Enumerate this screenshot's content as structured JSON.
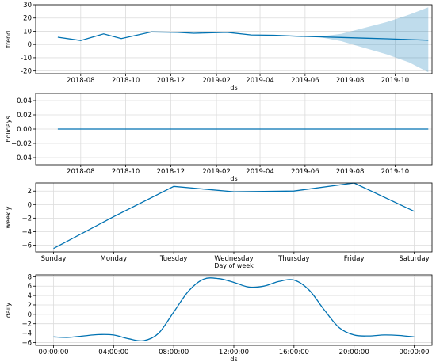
{
  "colors": {
    "line": "#0072B2",
    "band": "#0072B2",
    "grid": "#dcdcdc",
    "frame": "#000000"
  },
  "chart_data": [
    {
      "type": "line",
      "name": "trend",
      "xlabel": "ds",
      "ylabel": "trend",
      "x_type": "date",
      "xlim": [
        "2018-06-01",
        "2019-11-20"
      ],
      "ylim": [
        -22,
        30
      ],
      "yticks": [
        -20,
        -10,
        0,
        10,
        20,
        30
      ],
      "xticks": [
        "2018-08",
        "2018-10",
        "2018-12",
        "2019-02",
        "2019-04",
        "2019-06",
        "2019-08",
        "2019-10"
      ],
      "grid": true,
      "series": [
        {
          "x": [
            "2018-07-01",
            "2018-08-01",
            "2018-09-01",
            "2018-09-25",
            "2018-11-05",
            "2018-12-10",
            "2019-01-01",
            "2019-02-15",
            "2019-03-20",
            "2019-04-20",
            "2019-05-20",
            "2019-06-20",
            "2019-07-20",
            "2019-08-20",
            "2019-09-20",
            "2019-10-20",
            "2019-11-15"
          ],
          "y": [
            5.5,
            3.0,
            8.0,
            4.5,
            9.5,
            9.2,
            8.5,
            9.2,
            7.2,
            7.0,
            6.3,
            5.8,
            5.3,
            4.8,
            4.3,
            3.7,
            3.2
          ],
          "upper": [
            5.5,
            3.0,
            8.0,
            4.5,
            9.5,
            9.2,
            8.5,
            9.2,
            7.2,
            7.0,
            6.3,
            6.0,
            8.0,
            12.5,
            17.0,
            22.5,
            28.0
          ],
          "lower": [
            5.5,
            3.0,
            8.0,
            4.5,
            9.5,
            9.2,
            8.5,
            9.2,
            7.2,
            7.0,
            6.3,
            5.6,
            2.5,
            -2.5,
            -7.5,
            -13.5,
            -21.0
          ]
        }
      ]
    },
    {
      "type": "line",
      "name": "holidays",
      "xlabel": "ds",
      "ylabel": "holidays",
      "x_type": "date",
      "xlim": [
        "2018-06-01",
        "2019-11-20"
      ],
      "ylim": [
        -0.05,
        0.05
      ],
      "yticks": [
        -0.04,
        -0.02,
        0.0,
        0.02,
        0.04
      ],
      "ytick_labels": [
        "−0.04",
        "−0.02",
        "0.00",
        "0.02",
        "0.04"
      ],
      "xticks": [
        "2018-08",
        "2018-10",
        "2018-12",
        "2019-02",
        "2019-04",
        "2019-06",
        "2019-08",
        "2019-10"
      ],
      "grid": true,
      "series": [
        {
          "x": [
            "2018-07-01",
            "2019-11-15"
          ],
          "y": [
            0,
            0
          ]
        }
      ]
    },
    {
      "type": "line",
      "name": "weekly",
      "xlabel": "Day of week",
      "ylabel": "weekly",
      "x_type": "category",
      "categories": [
        "Sunday",
        "Monday",
        "Tuesday",
        "Wednesday",
        "Thursday",
        "Friday",
        "Saturday"
      ],
      "ylim": [
        -7,
        3.2
      ],
      "yticks": [
        -6,
        -4,
        -2,
        0,
        2
      ],
      "ytick_labels": [
        "−6",
        "−4",
        "−2",
        "0",
        "2"
      ],
      "grid": true,
      "series": [
        {
          "values": [
            -6.5,
            -1.8,
            2.7,
            1.9,
            2.0,
            3.2,
            -1.0
          ]
        }
      ]
    },
    {
      "type": "line",
      "name": "daily",
      "xlabel": "ds",
      "ylabel": "daily",
      "x_type": "time",
      "xlim": [
        0,
        24
      ],
      "ylim": [
        -6.6,
        8.4
      ],
      "yticks": [
        -6,
        -4,
        -2,
        0,
        2,
        4,
        6,
        8
      ],
      "ytick_labels": [
        "−6",
        "−4",
        "−2",
        "0",
        "2",
        "4",
        "6",
        "8"
      ],
      "xticks": [
        0,
        4,
        8,
        12,
        16,
        20,
        24
      ],
      "xtick_labels": [
        "00:00:00",
        "04:00:00",
        "08:00:00",
        "12:00:00",
        "16:00:00",
        "20:00:00",
        "00:00:00"
      ],
      "grid": true,
      "series": [
        {
          "x": [
            0,
            1,
            2,
            3,
            4,
            5,
            6,
            7,
            8,
            9,
            10,
            11,
            12,
            13,
            14,
            15,
            16,
            17,
            18,
            19,
            20,
            21,
            22,
            23,
            24
          ],
          "y": [
            -4.8,
            -4.9,
            -4.6,
            -4.3,
            -4.4,
            -5.2,
            -5.6,
            -4.0,
            0.5,
            5.0,
            7.5,
            7.6,
            6.8,
            5.8,
            6.0,
            7.0,
            7.3,
            5.2,
            1.0,
            -2.8,
            -4.4,
            -4.6,
            -4.4,
            -4.5,
            -4.8
          ]
        }
      ]
    }
  ]
}
